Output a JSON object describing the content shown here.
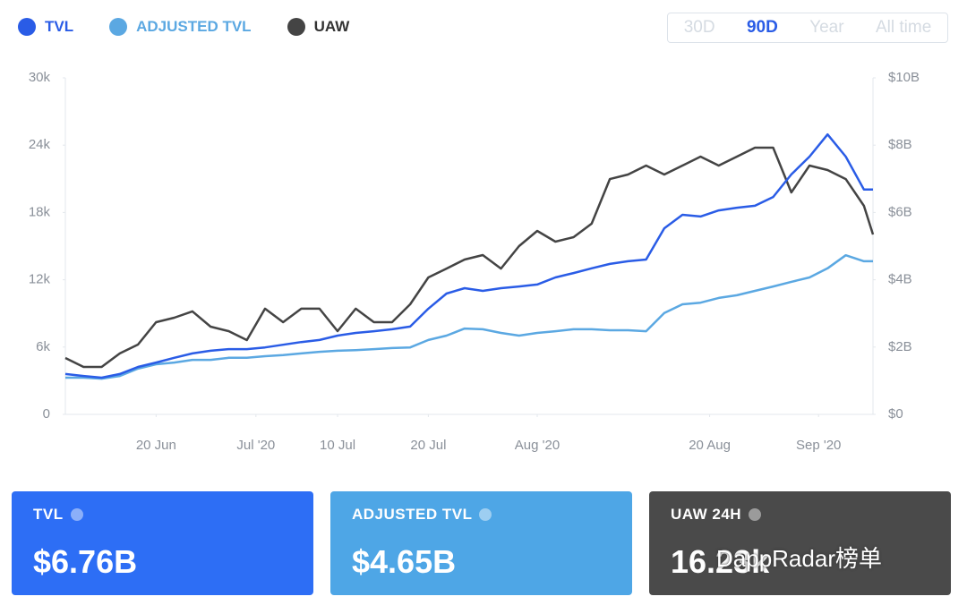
{
  "chart_data": {
    "type": "line",
    "x": [
      "2020-06-10",
      "2020-06-12",
      "2020-06-14",
      "2020-06-16",
      "2020-06-18",
      "2020-06-20",
      "2020-06-22",
      "2020-06-24",
      "2020-06-26",
      "2020-06-28",
      "2020-06-30",
      "2020-07-02",
      "2020-07-04",
      "2020-07-06",
      "2020-07-08",
      "2020-07-10",
      "2020-07-12",
      "2020-07-14",
      "2020-07-16",
      "2020-07-18",
      "2020-07-20",
      "2020-07-22",
      "2020-07-24",
      "2020-07-26",
      "2020-07-28",
      "2020-07-30",
      "2020-08-01",
      "2020-08-03",
      "2020-08-05",
      "2020-08-07",
      "2020-08-09",
      "2020-08-11",
      "2020-08-13",
      "2020-08-15",
      "2020-08-17",
      "2020-08-19",
      "2020-08-21",
      "2020-08-23",
      "2020-08-25",
      "2020-08-27",
      "2020-08-29",
      "2020-08-31",
      "2020-09-02",
      "2020-09-04",
      "2020-09-06",
      "2020-09-07"
    ],
    "xlim": [
      "2020-06-10",
      "2020-09-07"
    ],
    "xticks": [
      {
        "value": "2020-06-20",
        "label": "20 Jun"
      },
      {
        "value": "2020-07-01",
        "label": "Jul '20"
      },
      {
        "value": "2020-07-10",
        "label": "10 Jul"
      },
      {
        "value": "2020-07-20",
        "label": "20 Jul"
      },
      {
        "value": "2020-08-01",
        "label": "Aug '20"
      },
      {
        "value": "2020-08-20",
        "label": "20 Aug"
      },
      {
        "value": "2020-09-01",
        "label": "Sep '20"
      }
    ],
    "ylim": [
      0,
      30000
    ],
    "yticks": [
      {
        "value": 0,
        "label": "0"
      },
      {
        "value": 6000,
        "label": "6k"
      },
      {
        "value": 12000,
        "label": "12k"
      },
      {
        "value": 18000,
        "label": "18k"
      },
      {
        "value": 24000,
        "label": "24k"
      },
      {
        "value": 30000,
        "label": "30k"
      }
    ],
    "y2lim": [
      0,
      10000000000
    ],
    "y2ticks": [
      {
        "value": 0,
        "label": "$0"
      },
      {
        "value": 2000000000,
        "label": "$2B"
      },
      {
        "value": 4000000000,
        "label": "$4B"
      },
      {
        "value": 6000000000,
        "label": "$6B"
      },
      {
        "value": 8000000000,
        "label": "$8B"
      },
      {
        "value": 10000000000,
        "label": "$10B"
      }
    ],
    "series": [
      {
        "name": "TVL",
        "color": "#2a5ce6",
        "axis": "y2",
        "values": [
          1200000000.0,
          1140000000.0,
          1090000000.0,
          1200000000.0,
          1410000000.0,
          1540000000.0,
          1680000000.0,
          1810000000.0,
          1890000000.0,
          1940000000.0,
          1940000000.0,
          1990000000.0,
          2070000000.0,
          2150000000.0,
          2210000000.0,
          2340000000.0,
          2420000000.0,
          2470000000.0,
          2530000000.0,
          2610000000.0,
          3140000000.0,
          3590000000.0,
          3750000000.0,
          3670000000.0,
          3750000000.0,
          3800000000.0,
          3860000000.0,
          4070000000.0,
          4200000000.0,
          4340000000.0,
          4470000000.0,
          4550000000.0,
          4600000000.0,
          5530000000.0,
          5930000000.0,
          5880000000.0,
          6060000000.0,
          6140000000.0,
          6200000000.0,
          6460000000.0,
          7130000000.0,
          7660000000.0,
          8320000000.0,
          7660000000.0,
          6680000000.0,
          6680000000.0
        ]
      },
      {
        "name": "ADJUSTED TVL",
        "color": "#5ba8e2",
        "axis": "y2",
        "values": [
          1090000000.0,
          1090000000.0,
          1060000000.0,
          1140000000.0,
          1360000000.0,
          1490000000.0,
          1540000000.0,
          1620000000.0,
          1620000000.0,
          1680000000.0,
          1680000000.0,
          1730000000.0,
          1760000000.0,
          1810000000.0,
          1860000000.0,
          1890000000.0,
          1910000000.0,
          1940000000.0,
          1970000000.0,
          1990000000.0,
          2210000000.0,
          2340000000.0,
          2550000000.0,
          2530000000.0,
          2420000000.0,
          2340000000.0,
          2420000000.0,
          2470000000.0,
          2530000000.0,
          2530000000.0,
          2500000000.0,
          2500000000.0,
          2470000000.0,
          3010000000.0,
          3270000000.0,
          3320000000.0,
          3460000000.0,
          3540000000.0,
          3670000000.0,
          3800000000.0,
          3940000000.0,
          4070000000.0,
          4340000000.0,
          4730000000.0,
          4550000000.0,
          4550000000.0
        ]
      },
      {
        "name": "UAW",
        "color": "#444444",
        "values": [
          5030,
          4230,
          4230,
          5430,
          6220,
          8220,
          8620,
          9180,
          7820,
          7420,
          6620,
          9420,
          8220,
          9420,
          9420,
          7420,
          9420,
          8220,
          8220,
          9810,
          12210,
          13000,
          13800,
          14200,
          13000,
          15000,
          16360,
          15400,
          15800,
          17000,
          20980,
          21380,
          22180,
          21380,
          22180,
          22980,
          22180,
          22980,
          23780,
          23780,
          19790,
          22180,
          21780,
          20980,
          18590,
          16040
        ]
      }
    ]
  },
  "range_selector": {
    "options": [
      "30D",
      "90D",
      "Year",
      "All time"
    ],
    "selected": 1
  },
  "cards": [
    {
      "label": "TVL",
      "value": "$6.76B",
      "color": "#2d6ef5"
    },
    {
      "label": "ADJUSTED TVL",
      "value": "$4.65B",
      "color": "#4ea6e6"
    },
    {
      "label": "UAW 24H",
      "value": "16.23k",
      "color": "#4a4a4a"
    }
  ],
  "watermark": "DappRadar榜单"
}
